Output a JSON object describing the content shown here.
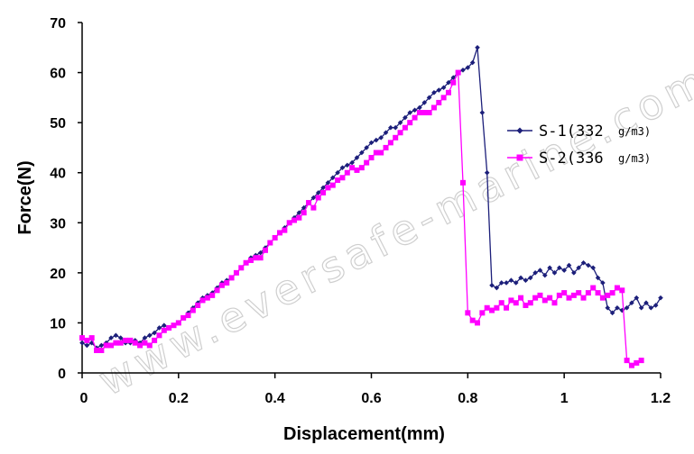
{
  "chart_data": {
    "type": "line",
    "title": "",
    "xlabel": "Displacement(mm)",
    "ylabel": "Force(N)",
    "xlim": [
      0,
      1.2
    ],
    "ylim": [
      0,
      70
    ],
    "x_ticks": [
      "0",
      "0.2",
      "0.4",
      "0.6",
      "0.8",
      "1",
      "1.2"
    ],
    "y_ticks": [
      "0",
      "10",
      "20",
      "30",
      "40",
      "50",
      "60",
      "70"
    ],
    "grid": false,
    "legend_position": "right",
    "watermark": "www.eversafe-marine.com",
    "series": [
      {
        "name": "S-1(332",
        "unit": "g/m3)",
        "color": "#1c1f7a",
        "marker": "diamond",
        "x": [
          0.0,
          0.01,
          0.02,
          0.03,
          0.04,
          0.05,
          0.06,
          0.07,
          0.08,
          0.09,
          0.1,
          0.11,
          0.12,
          0.13,
          0.14,
          0.15,
          0.16,
          0.17,
          0.18,
          0.19,
          0.2,
          0.21,
          0.22,
          0.23,
          0.24,
          0.25,
          0.26,
          0.27,
          0.28,
          0.29,
          0.3,
          0.31,
          0.32,
          0.33,
          0.34,
          0.35,
          0.36,
          0.37,
          0.38,
          0.39,
          0.4,
          0.41,
          0.42,
          0.43,
          0.44,
          0.45,
          0.46,
          0.47,
          0.48,
          0.49,
          0.5,
          0.51,
          0.52,
          0.53,
          0.54,
          0.55,
          0.56,
          0.57,
          0.58,
          0.59,
          0.6,
          0.61,
          0.62,
          0.63,
          0.64,
          0.65,
          0.66,
          0.67,
          0.68,
          0.69,
          0.7,
          0.71,
          0.72,
          0.73,
          0.74,
          0.75,
          0.76,
          0.77,
          0.78,
          0.79,
          0.8,
          0.81,
          0.82,
          0.83,
          0.84,
          0.85,
          0.86,
          0.87,
          0.88,
          0.89,
          0.9,
          0.91,
          0.92,
          0.93,
          0.94,
          0.95,
          0.96,
          0.97,
          0.98,
          0.99,
          1.0,
          1.01,
          1.02,
          1.03,
          1.04,
          1.05,
          1.06,
          1.07,
          1.08,
          1.09,
          1.1,
          1.11,
          1.12,
          1.13,
          1.14,
          1.15,
          1.16,
          1.17,
          1.18,
          1.19,
          1.2
        ],
        "y": [
          6,
          5.5,
          6,
          5,
          5.5,
          6,
          7,
          7.5,
          7,
          6,
          6,
          6.5,
          6,
          7,
          7.5,
          8,
          9,
          9.5,
          9,
          9.5,
          10,
          11,
          12,
          13,
          14,
          15,
          15.5,
          16,
          17,
          18,
          18.5,
          19,
          20,
          21,
          22,
          23,
          23.5,
          24,
          25,
          26,
          27,
          28,
          29,
          30,
          31,
          32,
          33,
          34,
          35,
          36,
          37,
          38,
          39,
          40,
          41,
          41.5,
          42,
          43,
          44,
          45,
          46,
          46.5,
          47,
          48,
          49,
          49,
          50,
          51,
          52,
          52.5,
          53,
          54,
          55,
          56,
          56.5,
          57,
          58,
          59,
          60,
          60.5,
          61,
          62,
          65,
          52,
          40,
          17.5,
          17,
          18,
          18,
          18.5,
          18,
          19,
          18.5,
          19,
          20,
          20.5,
          19.5,
          21,
          20,
          21,
          20.5,
          21.5,
          20,
          21,
          22,
          21.5,
          21,
          19,
          18,
          13,
          12,
          13,
          12.5,
          13,
          14,
          15,
          13,
          14,
          13,
          13.5,
          15
        ]
      },
      {
        "name": "S-2(336",
        "unit": "g/m3)",
        "color": "#ff00ff",
        "marker": "square",
        "x": [
          0.0,
          0.01,
          0.02,
          0.03,
          0.04,
          0.05,
          0.06,
          0.07,
          0.08,
          0.09,
          0.1,
          0.11,
          0.12,
          0.13,
          0.14,
          0.15,
          0.16,
          0.17,
          0.18,
          0.19,
          0.2,
          0.21,
          0.22,
          0.23,
          0.24,
          0.25,
          0.26,
          0.27,
          0.28,
          0.29,
          0.3,
          0.31,
          0.32,
          0.33,
          0.34,
          0.35,
          0.36,
          0.37,
          0.38,
          0.39,
          0.4,
          0.41,
          0.42,
          0.43,
          0.44,
          0.45,
          0.46,
          0.47,
          0.48,
          0.49,
          0.5,
          0.51,
          0.52,
          0.53,
          0.54,
          0.55,
          0.56,
          0.57,
          0.58,
          0.59,
          0.6,
          0.61,
          0.62,
          0.63,
          0.64,
          0.65,
          0.66,
          0.67,
          0.68,
          0.69,
          0.7,
          0.71,
          0.72,
          0.73,
          0.74,
          0.75,
          0.76,
          0.77,
          0.78,
          0.79,
          0.8,
          0.81,
          0.82,
          0.83,
          0.84,
          0.85,
          0.86,
          0.87,
          0.88,
          0.89,
          0.9,
          0.91,
          0.92,
          0.93,
          0.94,
          0.95,
          0.96,
          0.97,
          0.98,
          0.99,
          1.0,
          1.01,
          1.02,
          1.03,
          1.04,
          1.05,
          1.06,
          1.07,
          1.08,
          1.09,
          1.1,
          1.11,
          1.12,
          1.13,
          1.14,
          1.15,
          1.16
        ],
        "y": [
          7,
          6.5,
          7,
          4.5,
          4.5,
          5.5,
          5.5,
          6,
          6,
          6.5,
          6.5,
          6,
          5.5,
          6,
          5.5,
          6.5,
          7.5,
          8.5,
          9,
          9.5,
          10,
          11,
          11.5,
          12.5,
          13.5,
          14.5,
          15,
          15.5,
          16.5,
          17.5,
          18,
          19,
          20,
          21,
          22,
          22.5,
          23,
          23,
          24.5,
          26,
          27,
          28,
          28.5,
          30,
          30.5,
          31,
          32,
          34,
          33,
          35,
          36,
          37,
          37.5,
          38.5,
          39,
          40,
          41,
          40.5,
          41,
          42,
          43,
          44,
          44,
          45,
          46,
          47,
          48,
          49,
          50,
          51,
          52,
          52,
          52,
          53,
          54,
          55,
          56,
          58,
          60,
          38,
          12,
          10.5,
          10,
          12,
          13,
          12.5,
          13,
          14,
          13,
          14.5,
          14,
          15,
          13.5,
          14,
          15,
          15.5,
          14.5,
          15,
          14,
          15.5,
          16,
          15,
          15.5,
          16,
          15,
          16,
          17,
          16,
          15,
          15.5,
          16,
          17,
          16.5,
          2.5,
          1.5,
          2,
          2.5
        ]
      }
    ]
  }
}
